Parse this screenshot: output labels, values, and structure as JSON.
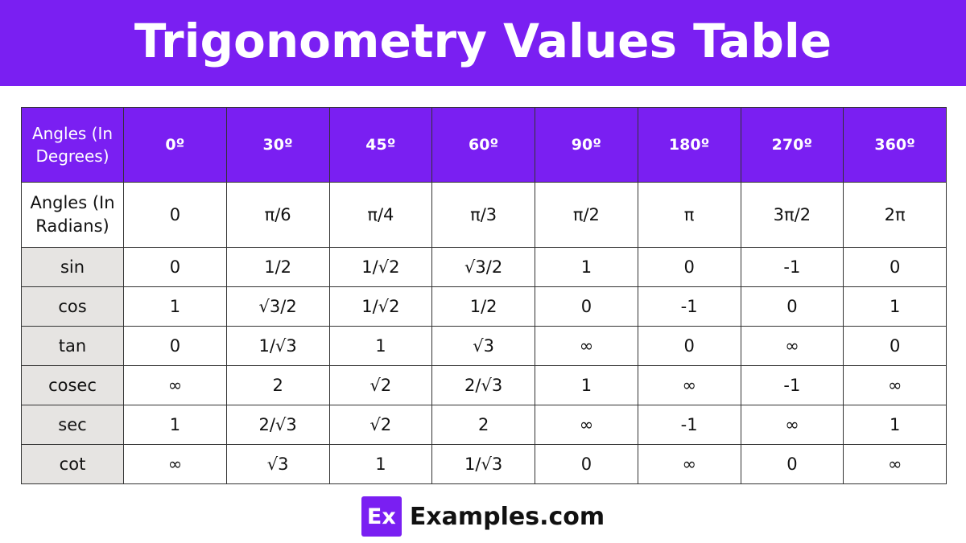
{
  "title": "Trigonometry Values Table",
  "table": {
    "corner_label": "Angles (In Degrees)",
    "degrees": [
      "0º",
      "30º",
      "45º",
      "60º",
      "90º",
      "180º",
      "270º",
      "360º"
    ],
    "radians_label": "Angles (In Radians)",
    "radians": [
      "0",
      "π/6",
      "π/4",
      "π/3",
      "π/2",
      "π",
      "3π/2",
      "2π"
    ],
    "rows": [
      {
        "fn": "sin",
        "values": [
          "0",
          "1/2",
          "1/√2",
          "√3/2",
          "1",
          "0",
          "-1",
          "0"
        ]
      },
      {
        "fn": "cos",
        "values": [
          "1",
          "√3/2",
          "1/√2",
          "1/2",
          "0",
          "-1",
          "0",
          "1"
        ]
      },
      {
        "fn": "tan",
        "values": [
          "0",
          "1/√3",
          "1",
          "√3",
          "∞",
          "0",
          "∞",
          "0"
        ]
      },
      {
        "fn": "cosec",
        "values": [
          "∞",
          "2",
          "√2",
          "2/√3",
          "1",
          "∞",
          "-1",
          "∞"
        ]
      },
      {
        "fn": "sec",
        "values": [
          "1",
          "2/√3",
          "√2",
          "2",
          "∞",
          "-1",
          "∞",
          "1"
        ]
      },
      {
        "fn": "cot",
        "values": [
          "∞",
          "√3",
          "1",
          "1/√3",
          "0",
          "∞",
          "0",
          "∞"
        ]
      }
    ]
  },
  "footer": {
    "logo_mark": "Ex",
    "logo_text": "Examples.com"
  },
  "colors": {
    "accent": "#7a1ff2",
    "label_bg": "#e6e4e2"
  }
}
